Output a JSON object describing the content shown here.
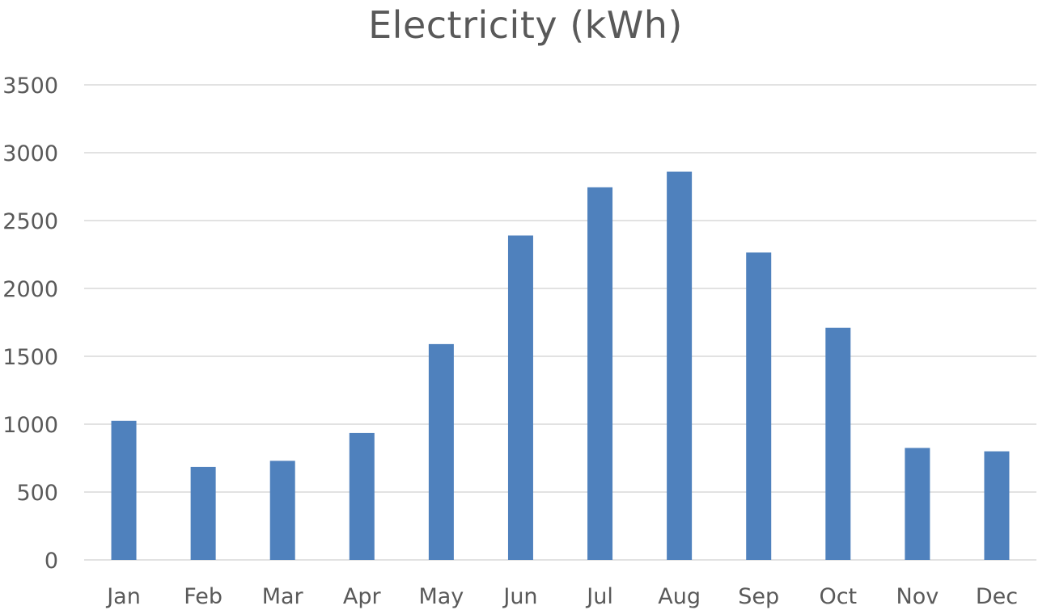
{
  "chart_data": {
    "type": "bar",
    "title": "Electricity (kWh)",
    "categories": [
      "Jan",
      "Feb",
      "Mar",
      "Apr",
      "May",
      "Jun",
      "Jul",
      "Aug",
      "Sep",
      "Oct",
      "Nov",
      "Dec"
    ],
    "values": [
      1025,
      685,
      730,
      935,
      1590,
      2390,
      2745,
      2860,
      2265,
      1710,
      825,
      800
    ],
    "ylim": [
      0,
      3500
    ],
    "yticks": [
      "0",
      "500",
      "1000",
      "1500",
      "2000",
      "2500",
      "3000",
      "3500"
    ],
    "grid": true,
    "legend": "none",
    "bar_color": "#4f81bd",
    "xlabel": "",
    "ylabel": ""
  }
}
